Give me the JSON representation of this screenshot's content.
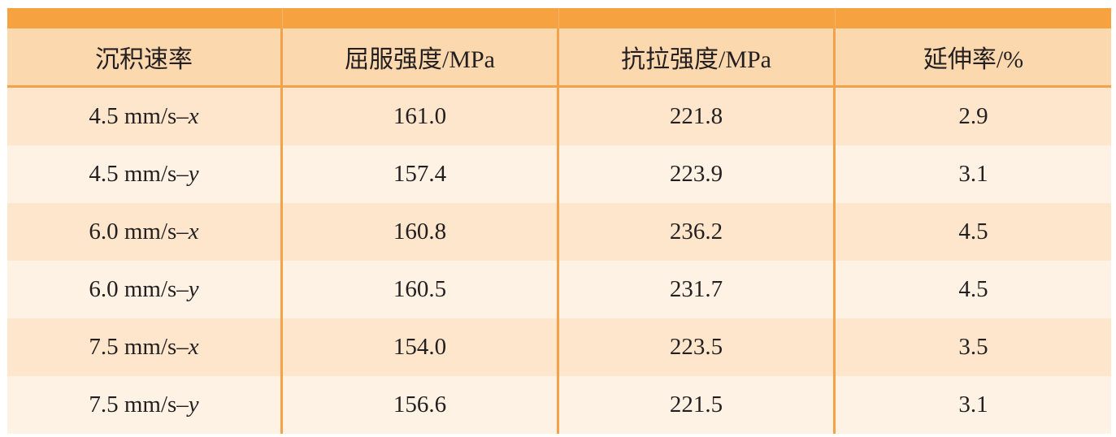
{
  "table": {
    "headers": [
      "沉积速率",
      "屈服强度/MPa",
      "抗拉强度/MPa",
      "延伸率/%"
    ],
    "rows": [
      {
        "rate": "4.5 mm/s–",
        "axis": "x",
        "yield": "161.0",
        "tensile": "221.8",
        "elongation": "2.9"
      },
      {
        "rate": "4.5 mm/s–",
        "axis": "y",
        "yield": "157.4",
        "tensile": "223.9",
        "elongation": "3.1"
      },
      {
        "rate": "6.0 mm/s–",
        "axis": "x",
        "yield": "160.8",
        "tensile": "236.2",
        "elongation": "4.5"
      },
      {
        "rate": "6.0 mm/s–",
        "axis": "y",
        "yield": "160.5",
        "tensile": "231.7",
        "elongation": "4.5"
      },
      {
        "rate": "7.5 mm/s–",
        "axis": "x",
        "yield": "154.0",
        "tensile": "223.5",
        "elongation": "3.5"
      },
      {
        "rate": "7.5 mm/s–",
        "axis": "y",
        "yield": "156.6",
        "tensile": "221.5",
        "elongation": "3.1"
      }
    ]
  },
  "colors": {
    "accent_bar": "#f7a240",
    "header_bg": "#fbd8ae",
    "row_odd_bg": "#fde6cc",
    "row_even_bg": "#fef2e4",
    "divider": "#f3a24a"
  }
}
